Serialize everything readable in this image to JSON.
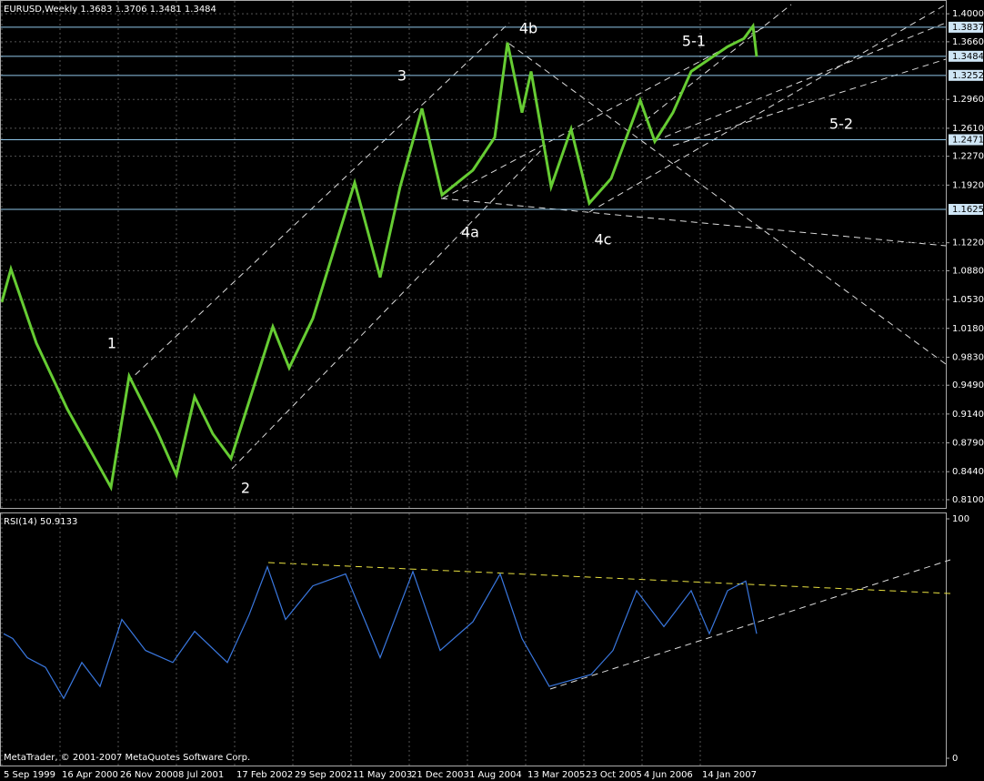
{
  "chart_data": [
    {
      "type": "line",
      "title": "EURUSD,Weekly  1.3683 1.3706 1.3481 1.3484",
      "color": "#66cc33",
      "x": [
        0,
        5,
        19,
        36,
        60,
        70,
        86,
        96,
        106,
        116,
        126,
        149,
        158,
        171,
        194,
        208,
        219,
        231,
        242,
        259,
        271,
        278,
        286,
        291,
        302,
        313,
        323,
        335,
        351,
        359,
        369,
        379,
        389,
        399,
        408,
        413,
        415
      ],
      "values": [
        1.05,
        1.09,
        1.0,
        0.92,
        0.825,
        0.96,
        0.89,
        0.84,
        0.935,
        0.89,
        0.86,
        1.02,
        0.97,
        1.03,
        1.195,
        1.08,
        1.19,
        1.285,
        1.18,
        1.21,
        1.25,
        1.365,
        1.28,
        1.33,
        1.19,
        1.26,
        1.17,
        1.2,
        1.295,
        1.245,
        1.28,
        1.33,
        1.345,
        1.36,
        1.37,
        1.385,
        1.348
      ],
      "xlim": [
        0,
        519
      ],
      "ylim": [
        0.8,
        1.409
      ],
      "xticks": [
        {
          "value": 0,
          "label": "5 Sep 1999"
        },
        {
          "value": 32,
          "label": "16 Apr 2000"
        },
        {
          "value": 64,
          "label": "26 Nov 2000"
        },
        {
          "value": 96,
          "label": "8 Jul 2001"
        },
        {
          "value": 128,
          "label": "17 Feb 2002"
        },
        {
          "value": 160,
          "label": "29 Sep 2002"
        },
        {
          "value": 192,
          "label": "11 May 2003"
        },
        {
          "value": 224,
          "label": "21 Dec 2003"
        },
        {
          "value": 256,
          "label": "1 Aug 2004"
        },
        {
          "value": 288,
          "label": "13 Mar 2005"
        },
        {
          "value": 320,
          "label": "23 Oct 2005"
        },
        {
          "value": 352,
          "label": "4 Jun 2006"
        },
        {
          "value": 384,
          "label": "14 Jan 2007"
        }
      ],
      "yticks": [
        {
          "value": 1.4,
          "label": "1.4000"
        },
        {
          "value": 1.366,
          "label": "1.3660"
        },
        {
          "value": 1.296,
          "label": "1.2960"
        },
        {
          "value": 1.261,
          "label": "1.2610"
        },
        {
          "value": 1.227,
          "label": "1.2270"
        },
        {
          "value": 1.192,
          "label": "1.1920"
        },
        {
          "value": 1.122,
          "label": "1.1220"
        },
        {
          "value": 1.088,
          "label": "1.0880"
        },
        {
          "value": 1.053,
          "label": "1.0530"
        },
        {
          "value": 1.018,
          "label": "1.0180"
        },
        {
          "value": 0.983,
          "label": "0.9830"
        },
        {
          "value": 0.949,
          "label": "0.9490"
        },
        {
          "value": 0.914,
          "label": "0.9140"
        },
        {
          "value": 0.879,
          "label": "0.8790"
        },
        {
          "value": 0.844,
          "label": "0.8440"
        },
        {
          "value": 0.81,
          "label": "0.8100"
        }
      ],
      "levels": [
        1.3837,
        1.3484,
        1.3252,
        1.2471,
        1.1625
      ],
      "annotations": [
        "1",
        "2",
        "3",
        "4a",
        "4b",
        "4c",
        "5-1",
        "5-2"
      ],
      "grid": true
    },
    {
      "type": "line",
      "title": "RSI(14) 50.9133",
      "color": "#3a78e0",
      "x": [
        1,
        6,
        14,
        24,
        34,
        44,
        54,
        66,
        79,
        94,
        106,
        124,
        136,
        146,
        156,
        171,
        189,
        201,
        208,
        226,
        241,
        259,
        274,
        286,
        301,
        324,
        336,
        349,
        364,
        379,
        389,
        399,
        409,
        415
      ],
      "values": [
        52,
        50,
        42,
        38,
        25,
        40,
        30,
        58,
        45,
        40,
        53,
        40,
        60,
        80,
        58,
        72,
        77,
        55,
        42,
        78,
        45,
        57,
        77,
        50,
        30,
        35,
        45,
        70,
        55,
        70,
        52,
        70,
        74,
        52
      ],
      "xlim": [
        0,
        519
      ],
      "ylim": [
        0,
        100
      ],
      "yticks": [
        100,
        0
      ]
    }
  ],
  "footer": "MetaTrader, © 2001-2007 MetaQuotes Software Corp."
}
